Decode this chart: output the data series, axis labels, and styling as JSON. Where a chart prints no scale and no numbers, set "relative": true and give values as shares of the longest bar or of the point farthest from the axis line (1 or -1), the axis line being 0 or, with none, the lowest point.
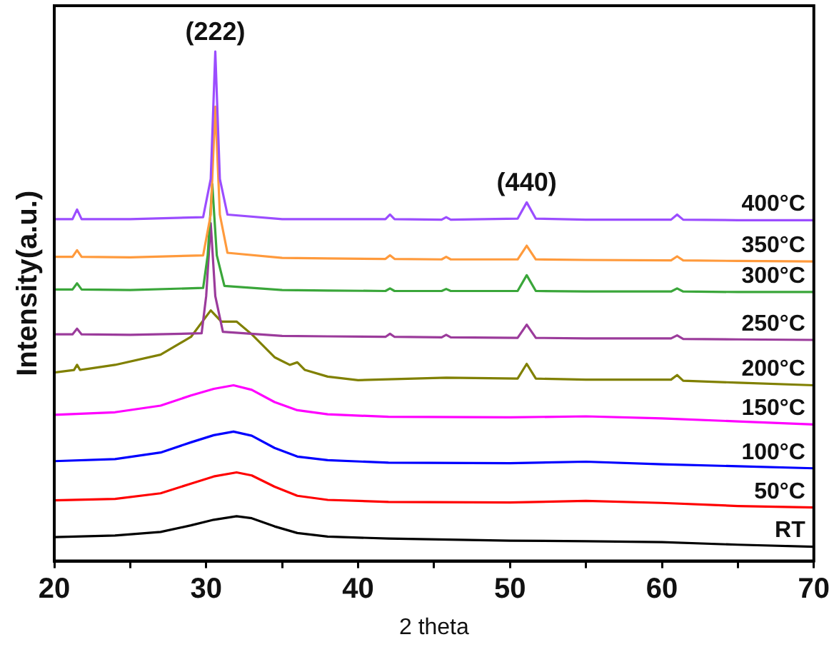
{
  "chart_data": {
    "type": "line",
    "relative": true,
    "xlabel": "2 theta",
    "ylabel": "Intensity(a.u.)",
    "xlim": [
      20,
      70
    ],
    "xticks": [
      20,
      {
        "value": 25,
        "label": null
      },
      30,
      {
        "value": 35,
        "label": null
      },
      40,
      {
        "value": 45,
        "label": null
      },
      50,
      {
        "value": 55,
        "label": null
      },
      60,
      {
        "value": 65,
        "label": null
      },
      70
    ],
    "marker": "none",
    "legend": false,
    "grid": false,
    "annotations": [
      {
        "text": "(222)",
        "x": 30.6,
        "y": 1.0
      },
      {
        "text": "(440)",
        "x": 51.1,
        "y": 0.704
      }
    ],
    "series": [
      {
        "name": "400°C",
        "color": "#9b4dff",
        "x": [
          20,
          21.2,
          21.5,
          21.8,
          25,
          29.8,
          30.3,
          30.6,
          30.9,
          31.4,
          35,
          38,
          41.8,
          42.1,
          42.4,
          45.5,
          45.8,
          46.1,
          50.5,
          51.1,
          51.7,
          55,
          60.6,
          61,
          61.4,
          65,
          70
        ],
        "values": [
          0.671,
          0.671,
          0.69,
          0.671,
          0.671,
          0.675,
          0.75,
          1.0,
          0.75,
          0.68,
          0.671,
          0.671,
          0.671,
          0.68,
          0.671,
          0.67,
          0.675,
          0.67,
          0.672,
          0.704,
          0.672,
          0.67,
          0.67,
          0.68,
          0.67,
          0.669,
          0.669
        ]
      },
      {
        "name": "350°C",
        "color": "#ff9a3c",
        "x": [
          20,
          21.2,
          21.5,
          21.8,
          25,
          29.8,
          30.3,
          30.6,
          30.9,
          31.4,
          35,
          38,
          41.8,
          42.1,
          42.4,
          45.5,
          45.8,
          46.1,
          50.5,
          51.1,
          51.7,
          55,
          60.6,
          61,
          61.4,
          65,
          70
        ],
        "values": [
          0.597,
          0.597,
          0.61,
          0.597,
          0.596,
          0.6,
          0.68,
          0.892,
          0.68,
          0.605,
          0.595,
          0.594,
          0.593,
          0.6,
          0.593,
          0.592,
          0.597,
          0.592,
          0.592,
          0.619,
          0.592,
          0.591,
          0.59,
          0.598,
          0.59,
          0.589,
          0.588
        ]
      },
      {
        "name": "300°C",
        "color": "#3aa63a",
        "x": [
          20,
          21.2,
          21.5,
          21.8,
          25,
          29.8,
          30.1,
          30.4,
          30.7,
          31.2,
          35,
          38,
          41.8,
          42.1,
          42.4,
          45.5,
          45.8,
          46.1,
          50.5,
          51.1,
          51.7,
          55,
          60.6,
          61,
          61.4,
          65,
          70
        ],
        "values": [
          0.533,
          0.533,
          0.545,
          0.533,
          0.532,
          0.536,
          0.6,
          0.74,
          0.6,
          0.54,
          0.532,
          0.531,
          0.53,
          0.535,
          0.53,
          0.53,
          0.534,
          0.53,
          0.53,
          0.561,
          0.53,
          0.529,
          0.529,
          0.535,
          0.529,
          0.528,
          0.528
        ]
      },
      {
        "name": "250°C",
        "color": "#9b3b9b",
        "x": [
          20,
          21.2,
          21.5,
          21.8,
          25,
          29.7,
          30,
          30.3,
          30.6,
          31.1,
          35,
          38,
          41.8,
          42.1,
          42.4,
          45.5,
          45.8,
          46.1,
          50.5,
          51.1,
          51.7,
          55,
          60.6,
          61,
          61.4,
          65,
          70
        ],
        "values": [
          0.445,
          0.445,
          0.456,
          0.445,
          0.444,
          0.447,
          0.52,
          0.663,
          0.52,
          0.45,
          0.442,
          0.441,
          0.44,
          0.446,
          0.44,
          0.439,
          0.444,
          0.439,
          0.438,
          0.464,
          0.438,
          0.437,
          0.437,
          0.443,
          0.436,
          0.435,
          0.434
        ]
      },
      {
        "name": "200°C",
        "color": "#808000",
        "x": [
          20,
          21.3,
          21.5,
          21.7,
          24,
          27,
          29,
          30.3,
          31,
          32,
          33,
          34.5,
          35.5,
          36,
          36.5,
          38,
          40,
          45.8,
          50.5,
          51.1,
          51.7,
          55,
          60.6,
          61,
          61.4,
          65,
          70
        ],
        "values": [
          0.37,
          0.375,
          0.385,
          0.375,
          0.385,
          0.405,
          0.44,
          0.492,
          0.47,
          0.47,
          0.445,
          0.4,
          0.385,
          0.39,
          0.375,
          0.362,
          0.355,
          0.36,
          0.358,
          0.387,
          0.358,
          0.356,
          0.356,
          0.365,
          0.354,
          0.35,
          0.345
        ]
      },
      {
        "name": "150°C",
        "color": "#ff00ff",
        "x": [
          20,
          24,
          27,
          29,
          30.5,
          31.8,
          33,
          34.5,
          36,
          38,
          42,
          50,
          55,
          60,
          65,
          70
        ],
        "values": [
          0.287,
          0.292,
          0.305,
          0.325,
          0.338,
          0.345,
          0.336,
          0.312,
          0.296,
          0.288,
          0.283,
          0.282,
          0.284,
          0.28,
          0.274,
          0.268
        ]
      },
      {
        "name": "100°C",
        "color": "#0000ff",
        "x": [
          20,
          24,
          27,
          29,
          30.5,
          31.8,
          33,
          34.5,
          36,
          38,
          42,
          50,
          55,
          60,
          65,
          70
        ],
        "values": [
          0.196,
          0.2,
          0.213,
          0.233,
          0.247,
          0.254,
          0.246,
          0.222,
          0.205,
          0.198,
          0.193,
          0.192,
          0.195,
          0.19,
          0.186,
          0.182
        ]
      },
      {
        "name": "50°C",
        "color": "#ff0000",
        "x": [
          20,
          24,
          27,
          29,
          30.5,
          32,
          33,
          34.5,
          36,
          38,
          42,
          50,
          55,
          60,
          65,
          70
        ],
        "values": [
          0.119,
          0.122,
          0.133,
          0.152,
          0.166,
          0.174,
          0.168,
          0.146,
          0.128,
          0.12,
          0.116,
          0.115,
          0.118,
          0.114,
          0.108,
          0.105
        ]
      },
      {
        "name": "RT",
        "color": "#000000",
        "x": [
          20,
          24,
          27,
          29,
          30.5,
          32,
          33,
          34.5,
          36,
          38,
          42,
          50,
          55,
          60,
          65,
          70
        ],
        "values": [
          0.047,
          0.05,
          0.057,
          0.07,
          0.081,
          0.088,
          0.084,
          0.068,
          0.055,
          0.048,
          0.044,
          0.04,
          0.039,
          0.037,
          0.032,
          0.028
        ]
      }
    ]
  }
}
